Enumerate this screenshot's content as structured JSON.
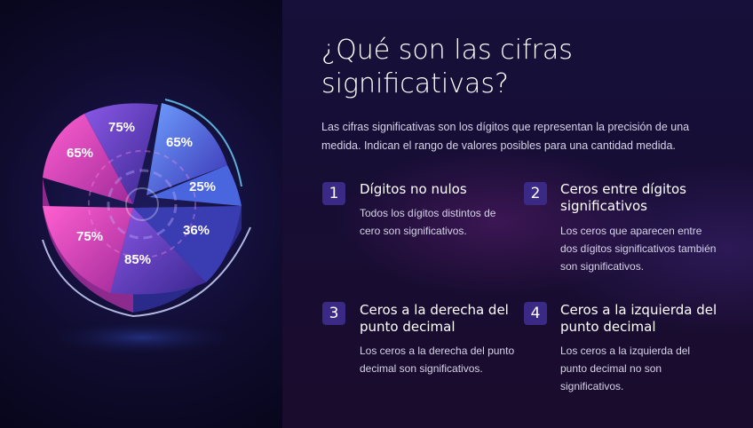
{
  "slide": {
    "title": "¿Qué son las cifras significativas?",
    "intro": "Las cifras significativas son los dígitos que representan la precisión de una medida. Indican el rango de valores posibles para una cantidad medida.",
    "colors": {
      "accent": "#3a2a86",
      "background": "#150d30",
      "text": "#ffffff"
    }
  },
  "illustration": {
    "segments": [
      {
        "label": "65%",
        "color": "#c83fb4"
      },
      {
        "label": "75%",
        "color": "#6a43c8"
      },
      {
        "label": "65%",
        "color": "#4a56d6"
      },
      {
        "label": "25%",
        "color": "#4063d8"
      },
      {
        "label": "36%",
        "color": "#3b3ab0"
      },
      {
        "label": "85%",
        "color": "#5a2fa8"
      },
      {
        "label": "75%",
        "color": "#d53ba6"
      }
    ]
  },
  "items": [
    {
      "number": "1",
      "heading": "Dígitos no nulos",
      "text": "Todos los dígitos distintos de cero son significativos."
    },
    {
      "number": "2",
      "heading": "Ceros entre dígitos significativos",
      "text": "Los ceros que aparecen entre dos dígitos significativos también son significativos."
    },
    {
      "number": "3",
      "heading": "Ceros a la derecha del punto decimal",
      "text": "Los ceros a la derecha del punto decimal son significativos."
    },
    {
      "number": "4",
      "heading": "Ceros a la izquierda del punto decimal",
      "text": "Los ceros a la izquierda del punto decimal no son significativos."
    }
  ]
}
